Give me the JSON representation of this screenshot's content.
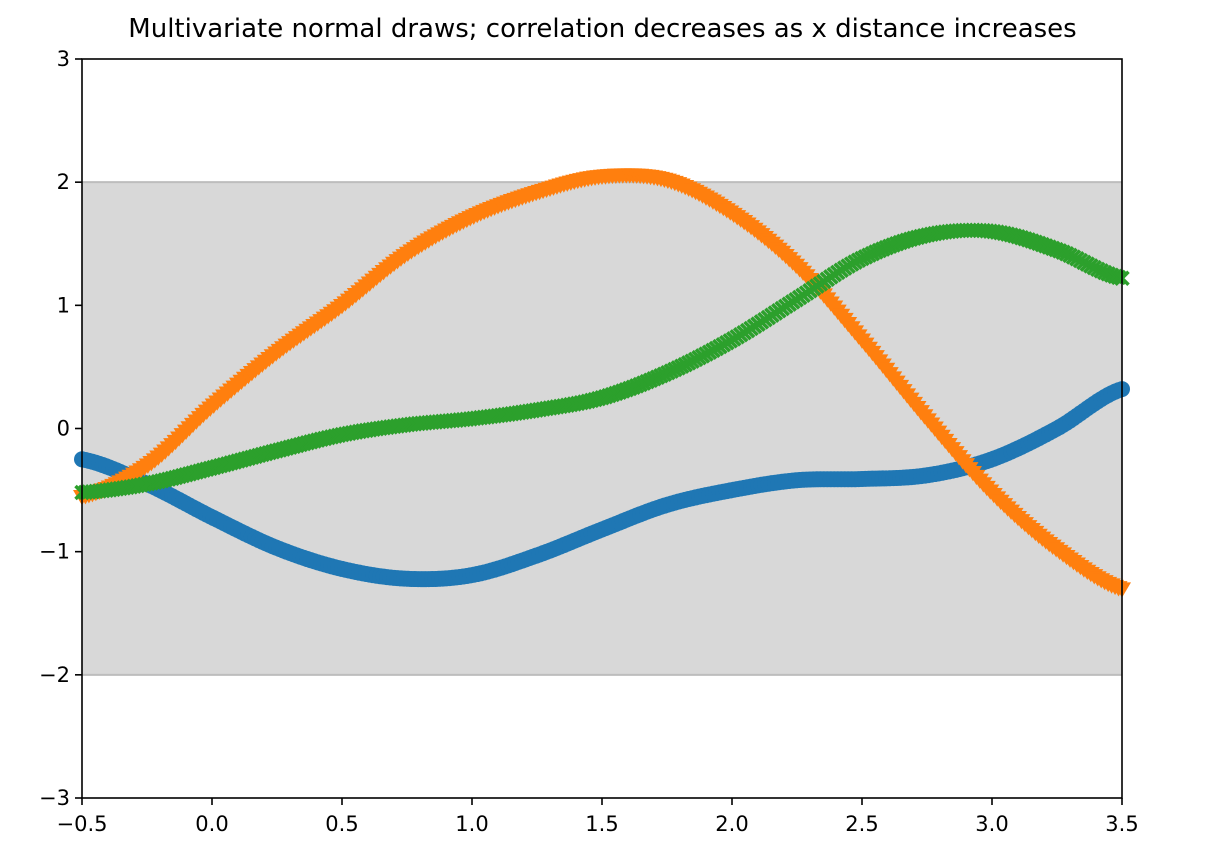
{
  "chart_data": {
    "type": "scatter",
    "title": "Multivariate normal draws; correlation decreases as x distance increases",
    "xlabel": "",
    "ylabel": "",
    "xlim": [
      -0.5,
      3.5
    ],
    "ylim": [
      -3,
      3
    ],
    "grid": false,
    "band": {
      "y_low": -2,
      "y_high": 2,
      "color": "#d8d8d8"
    },
    "x_ticks": [
      "−0.5",
      "0.0",
      "0.5",
      "1.0",
      "1.5",
      "2.0",
      "2.5",
      "3.0",
      "3.5"
    ],
    "x_tick_values": [
      -0.5,
      0.0,
      0.5,
      1.0,
      1.5,
      2.0,
      2.5,
      3.0,
      3.5
    ],
    "y_ticks": [
      "−3",
      "−2",
      "−1",
      "0",
      "1",
      "2",
      "3"
    ],
    "y_tick_values": [
      -3,
      -2,
      -1,
      0,
      1,
      2,
      3
    ],
    "series": [
      {
        "marker": "circle",
        "color": "#1f77b4",
        "x": [
          -0.5,
          -0.25,
          0.0,
          0.25,
          0.5,
          0.75,
          1.0,
          1.25,
          1.5,
          1.75,
          2.0,
          2.25,
          2.5,
          2.75,
          3.0,
          3.25,
          3.5
        ],
        "y": [
          -0.25,
          -0.45,
          -0.72,
          -0.97,
          -1.14,
          -1.22,
          -1.19,
          -1.03,
          -0.82,
          -0.62,
          -0.5,
          -0.42,
          -0.41,
          -0.38,
          -0.25,
          0.0,
          0.32
        ]
      },
      {
        "marker": "triangle",
        "color": "#ff7f0e",
        "x": [
          -0.5,
          -0.25,
          0.0,
          0.25,
          0.5,
          0.75,
          1.0,
          1.25,
          1.5,
          1.75,
          2.0,
          2.25,
          2.5,
          2.75,
          3.0,
          3.25,
          3.5
        ],
        "y": [
          -0.55,
          -0.3,
          0.18,
          0.62,
          1.0,
          1.42,
          1.72,
          1.92,
          2.05,
          2.02,
          1.75,
          1.32,
          0.72,
          0.08,
          -0.52,
          -0.98,
          -1.3
        ]
      },
      {
        "marker": "x",
        "color": "#2ca02c",
        "x": [
          -0.5,
          -0.25,
          0.0,
          0.25,
          0.5,
          0.75,
          1.0,
          1.25,
          1.5,
          1.75,
          2.0,
          2.25,
          2.5,
          2.75,
          3.0,
          3.25,
          3.5
        ],
        "y": [
          -0.52,
          -0.45,
          -0.32,
          -0.18,
          -0.05,
          0.03,
          0.08,
          0.15,
          0.25,
          0.45,
          0.72,
          1.05,
          1.38,
          1.57,
          1.6,
          1.45,
          1.22
        ]
      }
    ]
  }
}
